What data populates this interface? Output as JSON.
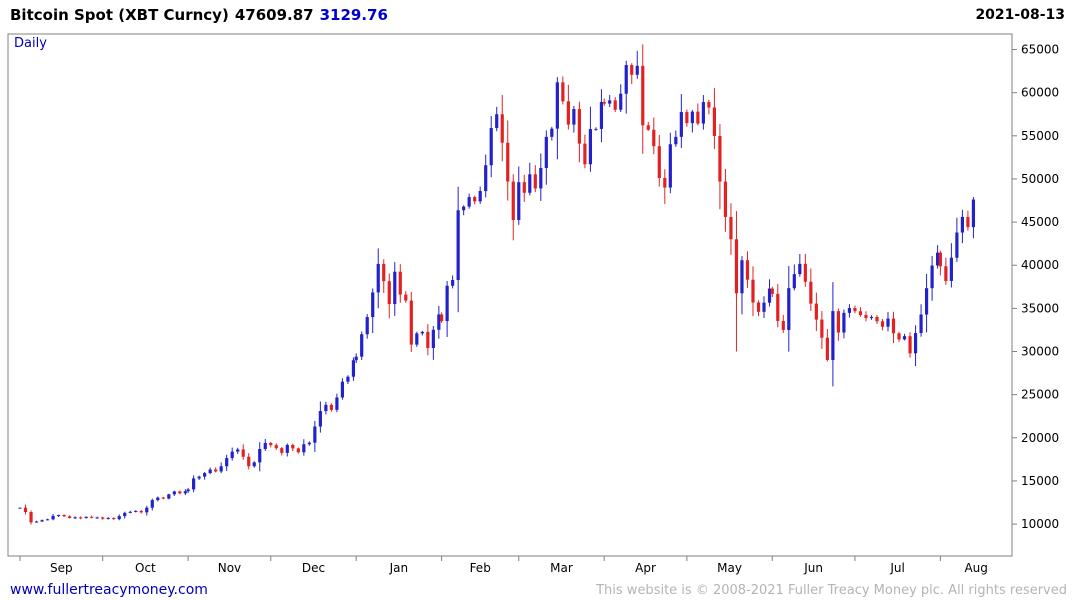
{
  "header": {
    "title": "Bitcoin Spot (XBT Curncy)",
    "price": "47609.87",
    "change": "3129.76",
    "date": "2021-08-13",
    "change_color": "#0000cc"
  },
  "chart": {
    "interval_label": "Daily",
    "interval_label_color": "#0000bb"
  },
  "footer": {
    "link": "www.fullertreacymoney.com",
    "link_color": "#0000bb",
    "copyright": "This website is © 2008-2021 Fuller Treacy Money plc. All rights reserved"
  },
  "chart_data": {
    "type": "candlestick",
    "title": "Bitcoin Spot (XBT Curncy)",
    "interval": "Daily",
    "xlabel": "",
    "ylabel": "",
    "ylim": [
      6300,
      66800
    ],
    "y_ticks": [
      10000,
      15000,
      20000,
      25000,
      30000,
      35000,
      40000,
      45000,
      50000,
      55000,
      60000,
      65000
    ],
    "x_domain_days": [
      -4,
      360
    ],
    "bar_spacing_days": 2,
    "up_color": "#2222cc",
    "down_color": "#e22222",
    "axis_color": "#808080",
    "grid": false,
    "legend": false,
    "months": [
      {
        "label": "Sep",
        "start_day": 0,
        "closes": [
          11900,
          11400,
          10200,
          10300,
          10450,
          10550,
          10950,
          11050,
          10900,
          10700,
          10780,
          10690,
          10840,
          10720,
          10770
        ]
      },
      {
        "label": "Oct",
        "start_day": 30,
        "closes": [
          10620,
          10700,
          10570,
          10920,
          11300,
          11420,
          11520,
          11360,
          11900,
          12780,
          13070,
          12950,
          13450,
          13780,
          13560,
          13800
        ]
      },
      {
        "label": "Nov",
        "start_day": 61,
        "closes": [
          14020,
          15290,
          15500,
          15910,
          16320,
          16100,
          16700,
          17650,
          18400,
          18650,
          17800,
          16700,
          17150,
          18700,
          19400
        ]
      },
      {
        "label": "Dec",
        "start_day": 91,
        "closes": [
          19150,
          18800,
          18250,
          19170,
          18770,
          18320,
          19250,
          19430,
          21310,
          23100,
          23820,
          23240,
          24670,
          26500,
          27080,
          28990
        ]
      },
      {
        "label": "Jan",
        "start_day": 122,
        "closes": [
          29400,
          32000,
          33990,
          36850,
          40150,
          38150,
          35500,
          39250,
          36600,
          35900,
          30800,
          32100,
          32280,
          30410,
          32520,
          34300
        ]
      },
      {
        "label": "Feb",
        "start_day": 153,
        "closes": [
          33530,
          37620,
          38290,
          46370,
          46800,
          47900,
          47400,
          48600,
          51590,
          55900,
          57500,
          54200,
          49700,
          45240
        ]
      },
      {
        "label": "Mar",
        "start_day": 181,
        "closes": [
          49630,
          48400,
          50540,
          48900,
          51270,
          54880,
          55830,
          61200,
          59000,
          56300,
          58100,
          54090,
          51700,
          55780,
          55800,
          58920
        ]
      },
      {
        "label": "Apr",
        "start_day": 212,
        "closes": [
          58730,
          59110,
          58020,
          59880,
          63200,
          62070,
          63110,
          56220,
          55700,
          53800,
          50110,
          49000,
          54020,
          54880,
          57750
        ]
      },
      {
        "label": "May",
        "start_day": 242,
        "closes": [
          56470,
          57800,
          56420,
          58910,
          58280,
          54980,
          49700,
          45600,
          43010,
          36750,
          40580,
          38320,
          35680,
          34600,
          35660,
          37300
        ]
      },
      {
        "label": "Jun",
        "start_day": 273,
        "closes": [
          36680,
          33540,
          32500,
          37340,
          38970,
          40160,
          38090,
          35550,
          33700,
          31600,
          29020,
          34680,
          32200,
          34480,
          35040
        ]
      },
      {
        "label": "Jul",
        "start_day": 303,
        "closes": [
          34670,
          34230,
          33880,
          34010,
          33500,
          32870,
          33820,
          32110,
          31400,
          31780,
          29790,
          32140,
          34290,
          37340,
          39970,
          41460
        ]
      },
      {
        "label": "Aug",
        "start_day": 334,
        "closes": [
          39880,
          38180,
          40870,
          43790,
          45600,
          44420,
          47610
        ]
      }
    ],
    "wick_overrides": {
      "2": {
        "low": 9950
      },
      "66": {
        "high": 41950
      },
      "72": {
        "low": 29950
      },
      "88": {
        "high": 58350
      },
      "99": {
        "high": 61800
      },
      "114": {
        "high": 64850
      },
      "119": {
        "low": 47100
      },
      "132": {
        "low": 30000
      },
      "144": {
        "high": 41300
      },
      "149": {
        "low": 28850
      },
      "164": {
        "low": 29300
      },
      "176": {
        "high": 47900
      }
    }
  }
}
